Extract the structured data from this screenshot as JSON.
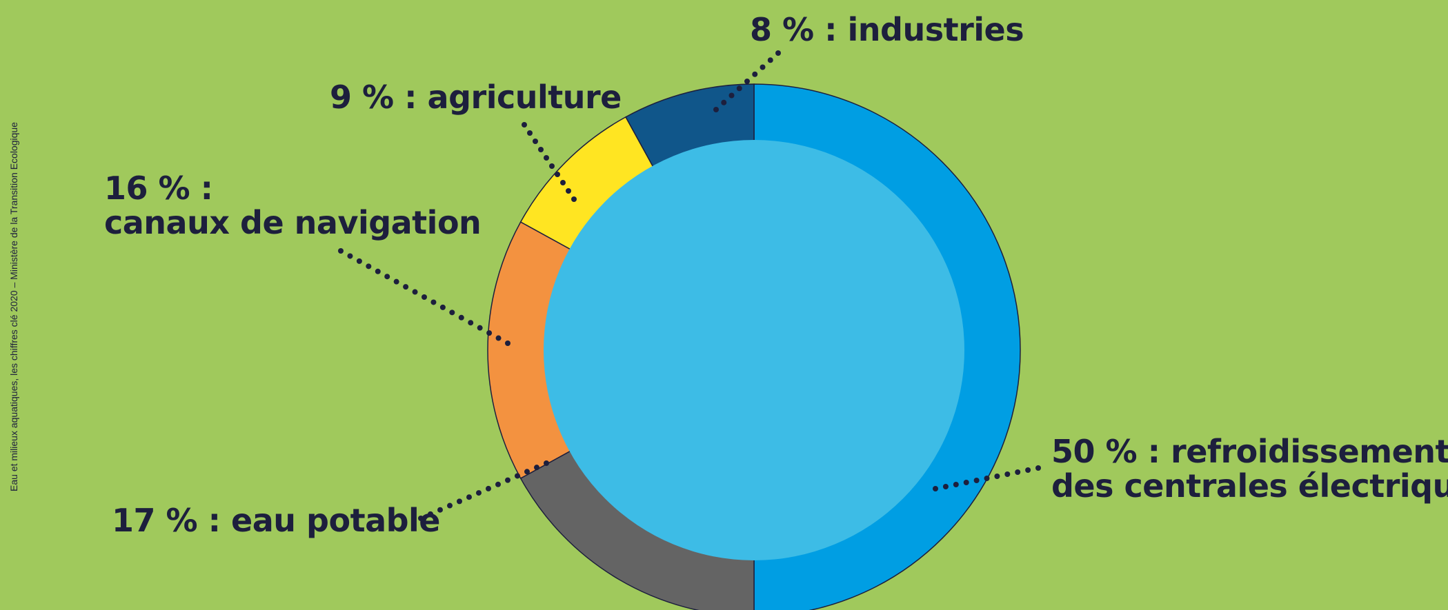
{
  "source": "Eau et milieux aquatiques, les chiffres clé 2020 – Ministère de la Transition Ecologique",
  "chart_data": {
    "type": "pie",
    "variant": "donut",
    "start": "top, clockwise",
    "slices": [
      {
        "key": "refroidissement",
        "value": 50,
        "color": "#009ee3",
        "label_lines": [
          "50 % : refroidissement",
          "des centrales électriques"
        ]
      },
      {
        "key": "eau-potable",
        "value": 17,
        "color": "#646464",
        "label_lines": [
          "17 % : eau potable"
        ]
      },
      {
        "key": "canaux",
        "value": 16,
        "color": "#f39240",
        "label_lines": [
          "16 % :",
          "canaux de navigation"
        ]
      },
      {
        "key": "agriculture",
        "value": 9,
        "color": "#ffe522",
        "label_lines": [
          "9 % : agriculture"
        ]
      },
      {
        "key": "industries",
        "value": 8,
        "color": "#10568a",
        "label_lines": [
          "8 % : industries"
        ]
      }
    ],
    "center_color": "#3dbce6",
    "background": "#a0c95c",
    "text_color": "#1d1f3d"
  }
}
